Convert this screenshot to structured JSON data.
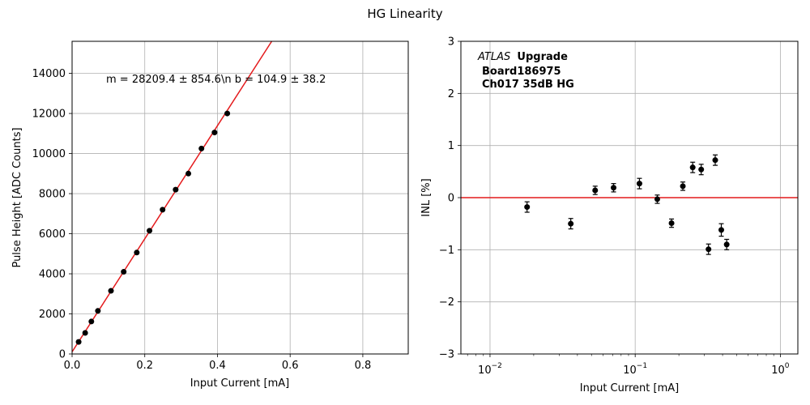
{
  "figure": {
    "title": "HG Linearity"
  },
  "chart_data": [
    {
      "type": "scatter",
      "title": "",
      "xlabel": "Input Current [mA]",
      "ylabel": "Pulse Height [ADC Counts]",
      "xlim": [
        0,
        0.925
      ],
      "ylim": [
        0,
        15600
      ],
      "x_ticks": [
        0,
        0.2,
        0.4,
        0.6,
        0.8
      ],
      "x_tick_labels": [
        "0.0",
        "0.2",
        "0.4",
        "0.6",
        "0.8"
      ],
      "y_ticks": [
        0,
        2000,
        4000,
        6000,
        8000,
        10000,
        12000,
        14000
      ],
      "y_tick_labels": [
        "0",
        "2000",
        "4000",
        "6000",
        "8000",
        "10000",
        "12000",
        "14000"
      ],
      "grid": true,
      "annotation": "m = 28209.4 ± 854.6\\n b = 104.9 ± 38.2",
      "fit_line": {
        "slope": 28209.4,
        "intercept": 104.9,
        "color": "#e41a1c"
      },
      "marker_color": "#000000",
      "series": [
        {
          "x": [
            0.018,
            0.036,
            0.053,
            0.071,
            0.107,
            0.142,
            0.178,
            0.213,
            0.249,
            0.285,
            0.32,
            0.356,
            0.392,
            0.427
          ],
          "y": [
            600,
            1050,
            1620,
            2150,
            3150,
            4100,
            5060,
            6150,
            7200,
            8200,
            9000,
            10250,
            11050,
            12000
          ]
        }
      ]
    },
    {
      "type": "scatter",
      "title": "",
      "xlabel": "Input Current [mA]",
      "ylabel": "INL [%]",
      "x_scale": "log",
      "xlim": [
        0.0063,
        1.32
      ],
      "ylim": [
        -3,
        3
      ],
      "x_ticks": [
        0.01,
        0.1,
        1
      ],
      "x_tick_labels": [
        "10",
        "10",
        "10"
      ],
      "x_tick_exponents": [
        "−2",
        "−1",
        "0"
      ],
      "y_ticks": [
        -3,
        -2,
        -1,
        0,
        1,
        2,
        3
      ],
      "y_tick_labels": [
        "−3",
        "−2",
        "−1",
        "0",
        "1",
        "2",
        "3"
      ],
      "grid": true,
      "reference_line": {
        "y": 0,
        "color": "#e41a1c"
      },
      "marker_color": "#000000",
      "annotation": {
        "experiment": "ATLAS",
        "tag": "Upgrade",
        "board": "Board186975",
        "channel": "Ch017 35dB HG"
      },
      "series": [
        {
          "x": [
            0.018,
            0.036,
            0.053,
            0.071,
            0.107,
            0.142,
            0.178,
            0.213,
            0.249,
            0.285,
            0.32,
            0.356,
            0.392,
            0.427
          ],
          "y": [
            -0.18,
            -0.5,
            0.14,
            0.19,
            0.27,
            -0.03,
            -0.49,
            0.22,
            0.58,
            0.54,
            -0.99,
            0.72,
            -0.62,
            -0.9
          ],
          "yerr": [
            0.1,
            0.1,
            0.08,
            0.08,
            0.1,
            0.08,
            0.08,
            0.08,
            0.1,
            0.1,
            0.1,
            0.1,
            0.12,
            0.1
          ]
        }
      ]
    }
  ]
}
